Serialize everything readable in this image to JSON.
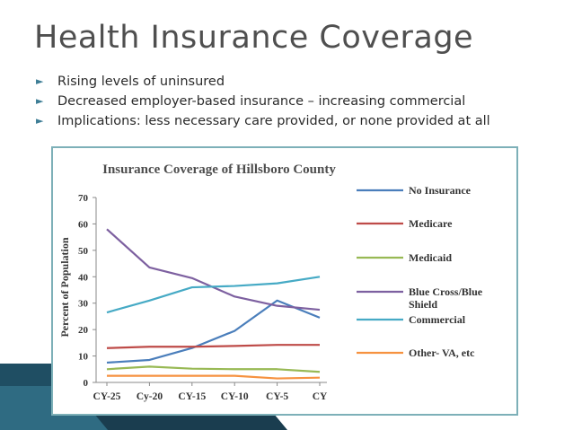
{
  "slide": {
    "title": "Health Insurance Coverage",
    "bullets": [
      "Rising levels of uninsured",
      "Decreased employer-based insurance – increasing commercial",
      "Implications: less necessary care provided, or none provided at all"
    ],
    "bullet_icon": "triangle-right-icon",
    "accent_color": "#3d7d95"
  },
  "chart_data": {
    "type": "line",
    "title": "Insurance Coverage of Hillsboro County",
    "xlabel": "",
    "ylabel": "Percent of Population",
    "categories": [
      "CY-25",
      "Cy-20",
      "CY-15",
      "CY-10",
      "CY-5",
      "CY"
    ],
    "ylim": [
      0,
      70
    ],
    "yticks": [
      0,
      10,
      20,
      30,
      40,
      50,
      60,
      70
    ],
    "grid": false,
    "legend_position": "right",
    "series": [
      {
        "name": "No Insurance",
        "color": "#4a7ebb",
        "values": [
          7.5,
          8.5,
          13,
          19.5,
          31,
          24.5
        ]
      },
      {
        "name": "Medicare",
        "color": "#be4b48",
        "values": [
          13,
          13.5,
          13.5,
          13.8,
          14.2,
          14.2
        ]
      },
      {
        "name": "Medicaid",
        "color": "#98b954",
        "values": [
          5,
          6,
          5.2,
          5,
          5,
          4
        ]
      },
      {
        "name": "Blue Cross/Blue Shield",
        "color": "#7d60a0",
        "values": [
          58,
          43.5,
          39.5,
          32.5,
          29,
          27.5
        ]
      },
      {
        "name": "Commercial",
        "color": "#46aac5",
        "values": [
          26.5,
          31,
          36,
          36.5,
          37.5,
          40
        ]
      },
      {
        "name": "Other- VA, etc",
        "color": "#f69240",
        "values": [
          2.5,
          2.5,
          2.5,
          2.5,
          1.5,
          1.8
        ]
      }
    ]
  }
}
